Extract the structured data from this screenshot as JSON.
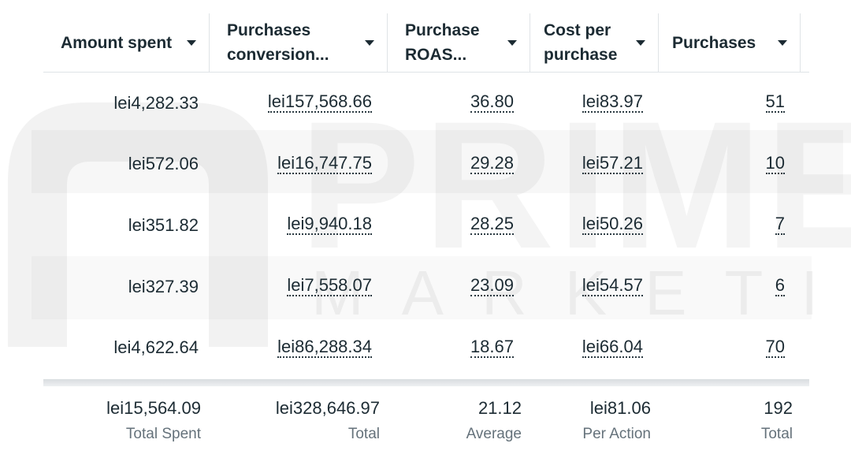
{
  "watermark": {
    "word1": "PRIME",
    "word2": "MARKETING",
    "logo": "pm-logo"
  },
  "columns": [
    {
      "label": "Amount spent"
    },
    {
      "label": "Purchases conversion..."
    },
    {
      "label": "Purchase ROAS..."
    },
    {
      "label": "Cost per purchase"
    },
    {
      "label": "Purchases"
    }
  ],
  "rows": [
    {
      "amount": "lei4,282.33",
      "conversion": "lei157,568.66",
      "roas": "36.80",
      "cpp": "lei83.97",
      "purchases": "51"
    },
    {
      "amount": "lei572.06",
      "conversion": "lei16,747.75",
      "roas": "29.28",
      "cpp": "lei57.21",
      "purchases": "10"
    },
    {
      "amount": "lei351.82",
      "conversion": "lei9,940.18",
      "roas": "28.25",
      "cpp": "lei50.26",
      "purchases": "7"
    },
    {
      "amount": "lei327.39",
      "conversion": "lei7,558.07",
      "roas": "23.09",
      "cpp": "lei54.57",
      "purchases": "6"
    },
    {
      "amount": "lei4,622.64",
      "conversion": "lei86,288.34",
      "roas": "18.67",
      "cpp": "lei66.04",
      "purchases": "70"
    }
  ],
  "totals": [
    {
      "value": "lei15,564.09",
      "label": "Total Spent"
    },
    {
      "value": "lei328,646.97",
      "label": "Total"
    },
    {
      "value": "21.12",
      "label": "Average"
    },
    {
      "value": "lei81.06",
      "label": "Per Action"
    },
    {
      "value": "192",
      "label": "Total"
    }
  ]
}
